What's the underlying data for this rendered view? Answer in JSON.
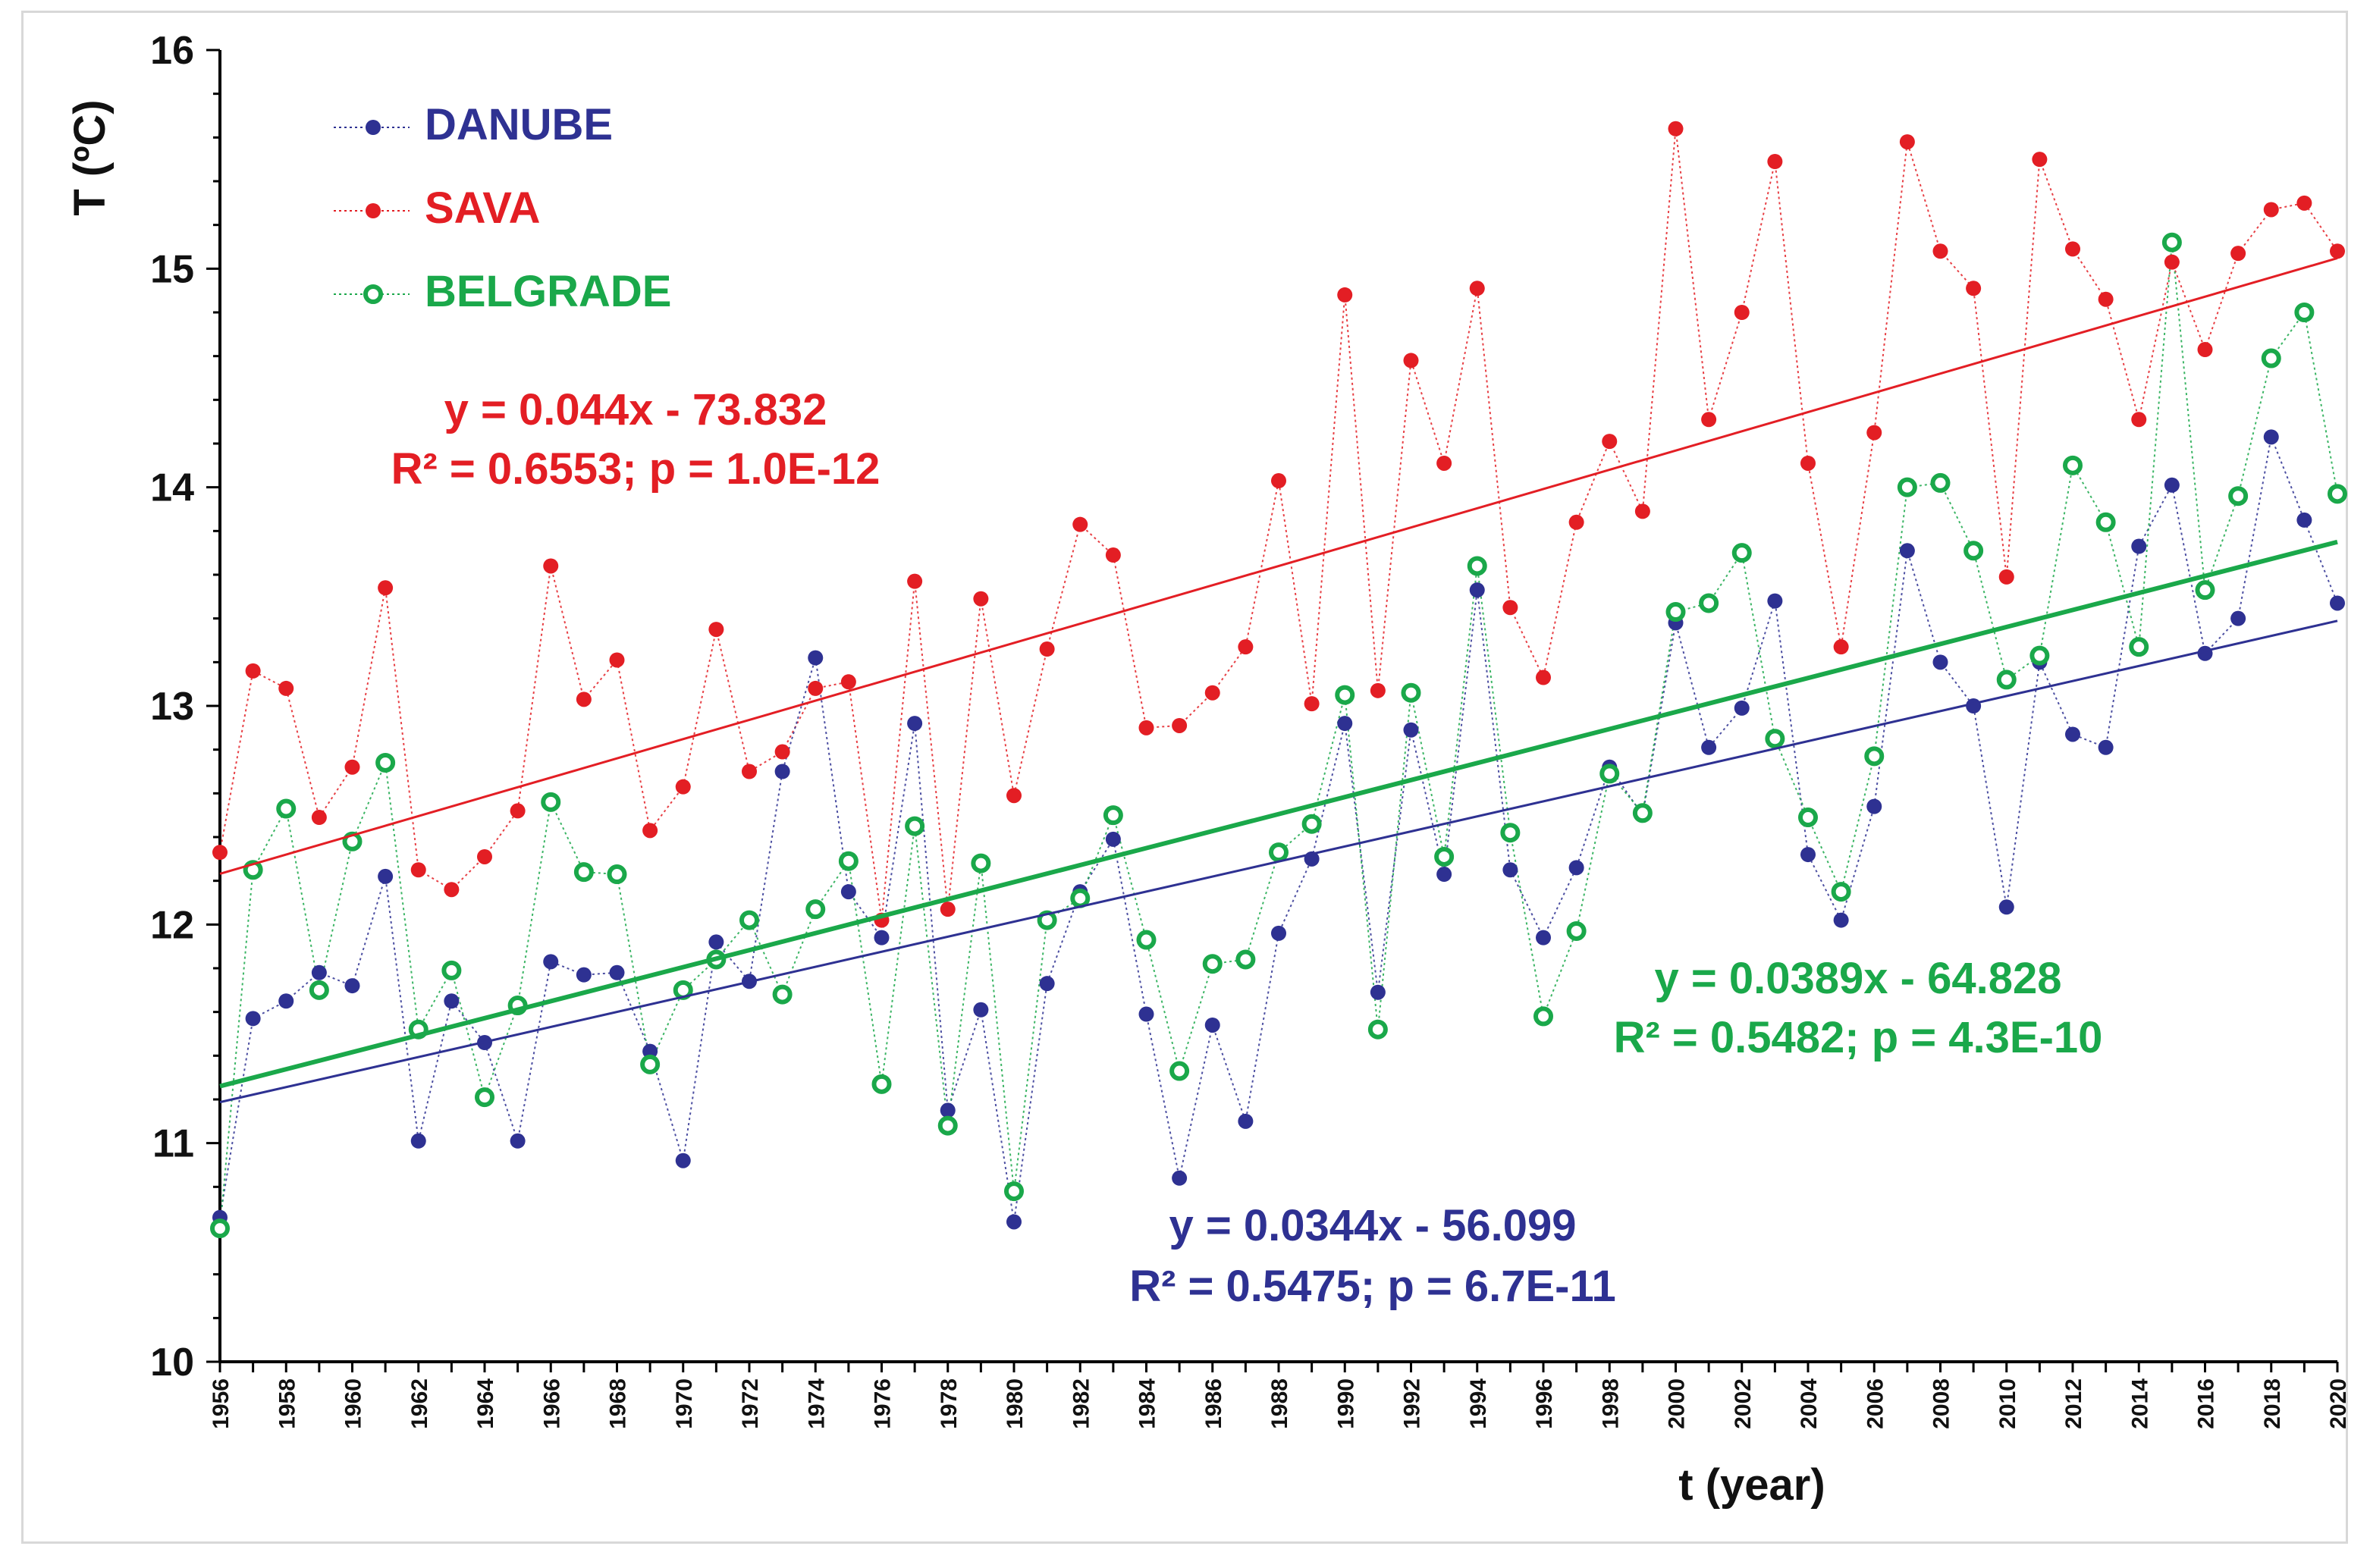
{
  "chart_data": {
    "type": "scatter",
    "ylabel": "T (ºC)",
    "xlabel": "t (year)",
    "ylim": [
      10,
      16
    ],
    "xlim": [
      1956,
      2020
    ],
    "yticks": [
      10,
      11,
      12,
      13,
      14,
      15,
      16
    ],
    "x": [
      1956,
      1957,
      1958,
      1959,
      1960,
      1961,
      1962,
      1963,
      1964,
      1965,
      1966,
      1967,
      1968,
      1969,
      1970,
      1971,
      1972,
      1973,
      1974,
      1975,
      1976,
      1977,
      1978,
      1979,
      1980,
      1981,
      1982,
      1983,
      1984,
      1985,
      1986,
      1987,
      1988,
      1989,
      1990,
      1991,
      1992,
      1993,
      1994,
      1995,
      1996,
      1997,
      1998,
      1999,
      2000,
      2001,
      2002,
      2003,
      2004,
      2005,
      2006,
      2007,
      2008,
      2009,
      2010,
      2011,
      2012,
      2013,
      2014,
      2015,
      2016,
      2017,
      2018,
      2019,
      2020
    ],
    "xtick_labels": [
      "1956",
      "1958",
      "1960",
      "1962",
      "1964",
      "1966",
      "1968",
      "1970",
      "1972",
      "1974",
      "1976",
      "1978",
      "1980",
      "1982",
      "1984",
      "1986",
      "1988",
      "1990",
      "1992",
      "1994",
      "1996",
      "1998",
      "2000",
      "2002",
      "2004",
      "2006",
      "2008",
      "2010",
      "2012",
      "2014",
      "2016",
      "2018",
      "2020"
    ],
    "series": [
      {
        "name": "DANUBE",
        "color": "#2e3192",
        "marker": "filled",
        "values": [
          10.66,
          11.57,
          11.65,
          11.78,
          11.72,
          12.22,
          11.01,
          11.65,
          11.46,
          11.01,
          11.83,
          11.77,
          11.78,
          11.42,
          10.92,
          11.92,
          11.74,
          12.7,
          13.22,
          12.15,
          11.94,
          12.92,
          11.15,
          11.61,
          10.64,
          11.73,
          12.15,
          12.39,
          11.59,
          10.84,
          11.54,
          11.1,
          11.96,
          12.3,
          12.92,
          11.69,
          12.89,
          12.23,
          13.53,
          12.25,
          11.94,
          12.26,
          12.72,
          12.5,
          13.38,
          12.81,
          12.99,
          13.48,
          12.32,
          12.02,
          12.54,
          13.71,
          13.2,
          13.0,
          12.08,
          13.2,
          12.87,
          12.81,
          13.73,
          14.01,
          13.24,
          13.4,
          14.23,
          13.85,
          13.47
        ],
        "trend": {
          "slope": 0.0344,
          "intercept": -56.099
        },
        "equation": "y = 0.0344x - 56.099",
        "stats": "R² = 0.5475; p = 6.7E-11"
      },
      {
        "name": "SAVA",
        "color": "#e31e24",
        "marker": "filled",
        "values": [
          12.33,
          13.16,
          13.08,
          12.49,
          12.72,
          13.54,
          12.25,
          12.16,
          12.31,
          12.52,
          13.64,
          13.03,
          13.21,
          12.43,
          12.63,
          13.35,
          12.7,
          12.79,
          13.08,
          13.11,
          12.02,
          13.57,
          12.07,
          13.49,
          12.59,
          13.26,
          13.83,
          13.69,
          12.9,
          12.91,
          13.06,
          13.27,
          14.03,
          13.01,
          14.88,
          13.07,
          14.58,
          14.11,
          14.91,
          13.45,
          13.13,
          13.84,
          14.21,
          13.89,
          15.64,
          14.31,
          14.8,
          15.49,
          14.11,
          13.27,
          14.25,
          15.58,
          15.08,
          14.91,
          13.59,
          15.5,
          15.09,
          14.86,
          14.31,
          15.03,
          14.63,
          15.07,
          15.27,
          15.3,
          15.08
        ],
        "trend": {
          "slope": 0.044,
          "intercept": -73.832
        },
        "equation": "y = 0.044x - 73.832",
        "stats": "R² = 0.6553; p = 1.0E-12"
      },
      {
        "name": "BELGRADE",
        "color": "#1aa84a",
        "marker": "ring",
        "values": [
          10.61,
          12.25,
          12.53,
          11.7,
          12.38,
          12.74,
          11.52,
          11.79,
          11.21,
          11.63,
          12.56,
          12.24,
          12.23,
          11.36,
          11.7,
          11.84,
          12.02,
          11.68,
          12.07,
          12.29,
          11.27,
          12.45,
          11.08,
          12.28,
          10.78,
          12.02,
          12.12,
          12.5,
          11.93,
          11.33,
          11.82,
          11.84,
          12.33,
          12.46,
          13.05,
          11.52,
          13.06,
          12.31,
          13.64,
          12.42,
          11.58,
          11.97,
          12.69,
          12.51,
          13.43,
          13.47,
          13.7,
          12.85,
          12.49,
          12.15,
          12.77,
          14.0,
          14.02,
          13.71,
          13.12,
          13.23,
          14.1,
          13.84,
          13.27,
          15.12,
          13.53,
          13.96,
          14.59,
          14.8,
          13.97
        ],
        "trend": {
          "slope": 0.0389,
          "intercept": -64.828
        },
        "equation": "y = 0.0389x - 64.828",
        "stats": "R² = 0.5482; p = 4.3E-10"
      }
    ]
  }
}
